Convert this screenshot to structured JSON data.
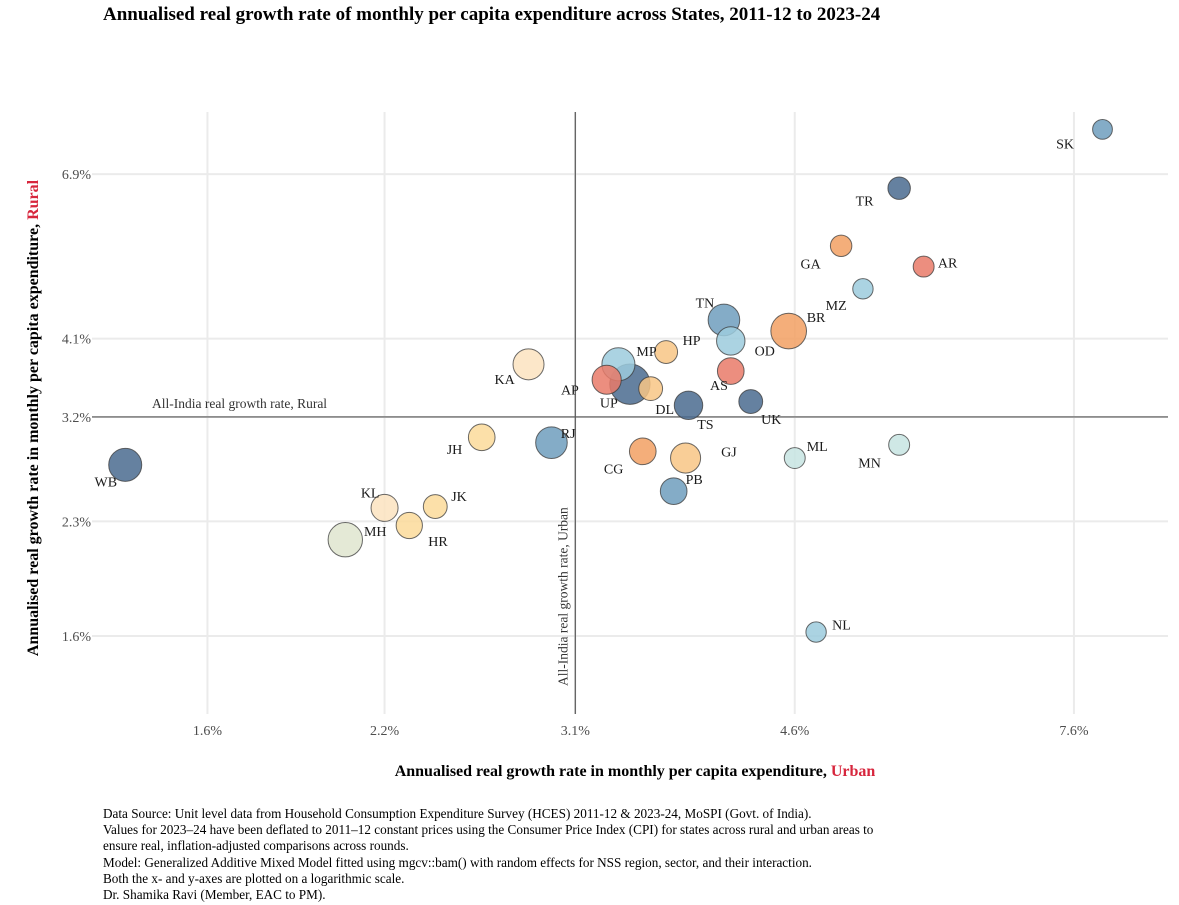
{
  "title": "Annualised real growth rate of monthly per capita expenditure across States, 2011-12 to 2023-24",
  "xlabel": {
    "main": "Annualised real growth rate in monthly per capita expenditure, ",
    "accent": "Urban"
  },
  "ylabel": {
    "main": "Annualised real growth rate in monthly per capita expenditure, ",
    "accent": "Rural"
  },
  "notes": [
    "Data Source: Unit level data from Household Consumption Expenditure Survey (HCES) 2011-12 & 2023-24, MoSPI (Govt. of India).",
    "Values for 2023–24 have been deflated to 2011–12 constant prices using the Consumer Price Index (CPI) for states across rural and urban areas to",
    "ensure real, inflation-adjusted comparisons across rounds.",
    "Model: Generalized Additive Mixed Model fitted using mgcv::bam() with random effects for NSS region, sector, and their interaction.",
    "Both the x- and y-axes are plotted on a logarithmic scale.",
    "Dr. Shamika Ravi (Member, EAC to PM)."
  ],
  "chart_data": {
    "type": "scatter",
    "x_scale": "log",
    "y_scale": "log",
    "xlim": [
      1.3,
      9.0
    ],
    "ylim": [
      1.25,
      8.4
    ],
    "x_ticks": [
      1.6,
      2.2,
      3.1,
      4.6,
      7.6
    ],
    "x_tick_labels": [
      "1.6%",
      "2.2%",
      "3.1%",
      "4.6%",
      "7.6%"
    ],
    "y_ticks": [
      1.6,
      2.3,
      3.2,
      4.1,
      6.9
    ],
    "y_tick_labels": [
      "1.6%",
      "2.3%",
      "3.2%",
      "4.1%",
      "6.9%"
    ],
    "grid": true,
    "reference_lines": {
      "rural": {
        "value": 3.2,
        "label": "All-India real growth rate, Rural"
      },
      "urban": {
        "value": 3.1,
        "label": "All-India real growth rate, Urban"
      }
    },
    "colors": {
      "blue_dark": "#4a6b8f",
      "blue_mid": "#6f9dbd",
      "blue_light": "#9ccbdd",
      "teal_pale": "#c7e4e2",
      "orange": "#f2a063",
      "orange_light": "#f8c585",
      "yellow_pale": "#fbdb9a",
      "cream": "#fbe3c0",
      "red": "#e97a69",
      "sage": "#dfe5cf"
    },
    "points": [
      {
        "state": "SK",
        "x": 8.0,
        "y": 7.95,
        "size": 1.0,
        "color": "blue_mid"
      },
      {
        "state": "TR",
        "x": 5.55,
        "y": 6.6,
        "size": 1.5,
        "color": "blue_dark"
      },
      {
        "state": "GA",
        "x": 5.0,
        "y": 5.5,
        "size": 1.3,
        "color": "orange"
      },
      {
        "state": "AR",
        "x": 5.8,
        "y": 5.15,
        "size": 1.2,
        "color": "red"
      },
      {
        "state": "MZ",
        "x": 5.2,
        "y": 4.8,
        "size": 1.1,
        "color": "blue_light"
      },
      {
        "state": "TN",
        "x": 4.05,
        "y": 4.35,
        "size": 4.0,
        "color": "blue_mid"
      },
      {
        "state": "BR",
        "x": 4.55,
        "y": 4.2,
        "size": 5.5,
        "color": "orange"
      },
      {
        "state": "OD",
        "x": 4.1,
        "y": 4.07,
        "size": 3.0,
        "color": "blue_light"
      },
      {
        "state": "HP",
        "x": 3.65,
        "y": 3.93,
        "size": 1.6,
        "color": "orange_light"
      },
      {
        "state": "MP",
        "x": 3.35,
        "y": 3.78,
        "size": 4.5,
        "color": "blue_light"
      },
      {
        "state": "OD2",
        "x": 4.1,
        "y": 3.7,
        "size": 2.5,
        "color": "red"
      },
      {
        "state": "KA",
        "x": 2.85,
        "y": 3.78,
        "size": 3.8,
        "color": "cream"
      },
      {
        "state": "AP",
        "x": 3.28,
        "y": 3.6,
        "size": 3.2,
        "color": "red"
      },
      {
        "state": "UP",
        "x": 3.42,
        "y": 3.55,
        "size": 7.5,
        "color": "blue_dark"
      },
      {
        "state": "DL",
        "x": 3.55,
        "y": 3.5,
        "size": 1.8,
        "color": "orange_light"
      },
      {
        "state": "AS",
        "x": 3.8,
        "y": 3.32,
        "size": 3.0,
        "color": "blue_dark"
      },
      {
        "state": "UK",
        "x": 4.25,
        "y": 3.36,
        "size": 1.8,
        "color": "blue_dark"
      },
      {
        "state": "JH",
        "x": 2.62,
        "y": 3.0,
        "size": 2.5,
        "color": "yellow_pale"
      },
      {
        "state": "RJ",
        "x": 2.97,
        "y": 2.95,
        "size": 4.0,
        "color": "blue_mid"
      },
      {
        "state": "CG",
        "x": 3.5,
        "y": 2.87,
        "size": 2.5,
        "color": "orange"
      },
      {
        "state": "GJ",
        "x": 3.78,
        "y": 2.81,
        "size": 3.5,
        "color": "orange_light"
      },
      {
        "state": "ML",
        "x": 4.6,
        "y": 2.81,
        "size": 1.2,
        "color": "teal_pale"
      },
      {
        "state": "MN",
        "x": 5.55,
        "y": 2.93,
        "size": 1.2,
        "color": "teal_pale"
      },
      {
        "state": "WB",
        "x": 1.38,
        "y": 2.75,
        "size": 4.5,
        "color": "blue_dark"
      },
      {
        "state": "PB",
        "x": 3.7,
        "y": 2.53,
        "size": 2.5,
        "color": "blue_mid"
      },
      {
        "state": "KL",
        "x": 2.2,
        "y": 2.4,
        "size": 2.6,
        "color": "cream"
      },
      {
        "state": "JK",
        "x": 2.41,
        "y": 2.41,
        "size": 1.8,
        "color": "yellow_pale"
      },
      {
        "state": "HR",
        "x": 2.3,
        "y": 2.27,
        "size": 2.4,
        "color": "yellow_pale"
      },
      {
        "state": "MH",
        "x": 2.05,
        "y": 2.17,
        "size": 5.0,
        "color": "sage"
      },
      {
        "state": "NL",
        "x": 4.78,
        "y": 1.62,
        "size": 1.1,
        "color": "blue_light"
      }
    ],
    "labels": [
      {
        "text": "SK",
        "x": 7.6,
        "y": 7.6,
        "anchor": "end"
      },
      {
        "text": "TR",
        "x": 5.3,
        "y": 6.35,
        "anchor": "end"
      },
      {
        "text": "GA",
        "x": 4.82,
        "y": 5.2,
        "anchor": "end"
      },
      {
        "text": "AR",
        "x": 5.95,
        "y": 5.22,
        "anchor": "start"
      },
      {
        "text": "MZ",
        "x": 5.05,
        "y": 4.56,
        "anchor": "end"
      },
      {
        "text": "TN",
        "x": 3.98,
        "y": 4.6,
        "anchor": "end"
      },
      {
        "text": "BR",
        "x": 4.7,
        "y": 4.39,
        "anchor": "start"
      },
      {
        "text": "OD",
        "x": 4.28,
        "y": 3.95,
        "anchor": "start"
      },
      {
        "text": "HP",
        "x": 3.76,
        "y": 4.08,
        "anchor": "start"
      },
      {
        "text": "MP",
        "x": 3.46,
        "y": 3.94,
        "anchor": "start"
      },
      {
        "text": "KA",
        "x": 2.78,
        "y": 3.61,
        "anchor": "end"
      },
      {
        "text": "AP",
        "x": 3.12,
        "y": 3.49,
        "anchor": "end"
      },
      {
        "text": "UP",
        "x": 3.24,
        "y": 3.35,
        "anchor": "start"
      },
      {
        "text": "DL",
        "x": 3.58,
        "y": 3.28,
        "anchor": "start"
      },
      {
        "text": "AS",
        "x": 3.95,
        "y": 3.54,
        "anchor": "start"
      },
      {
        "text": "TS",
        "x": 3.86,
        "y": 3.13,
        "anchor": "start"
      },
      {
        "text": "UK",
        "x": 4.33,
        "y": 3.18,
        "anchor": "start"
      },
      {
        "text": "JH",
        "x": 2.53,
        "y": 2.89,
        "anchor": "end"
      },
      {
        "text": "RJ",
        "x": 3.02,
        "y": 3.04,
        "anchor": "start"
      },
      {
        "text": "CG",
        "x": 3.38,
        "y": 2.72,
        "anchor": "end"
      },
      {
        "text": "GJ",
        "x": 4.03,
        "y": 2.87,
        "anchor": "start"
      },
      {
        "text": "ML",
        "x": 4.7,
        "y": 2.92,
        "anchor": "start"
      },
      {
        "text": "MN",
        "x": 5.37,
        "y": 2.77,
        "anchor": "end"
      },
      {
        "text": "WB",
        "x": 1.36,
        "y": 2.61,
        "anchor": "end"
      },
      {
        "text": "PB",
        "x": 3.78,
        "y": 2.63,
        "anchor": "start"
      },
      {
        "text": "KL",
        "x": 2.18,
        "y": 2.52,
        "anchor": "end"
      },
      {
        "text": "JK",
        "x": 2.48,
        "y": 2.49,
        "anchor": "start"
      },
      {
        "text": "HR",
        "x": 2.38,
        "y": 2.16,
        "anchor": "start"
      },
      {
        "text": "MH",
        "x": 2.12,
        "y": 2.23,
        "anchor": "start"
      },
      {
        "text": "NL",
        "x": 4.92,
        "y": 1.66,
        "anchor": "start"
      }
    ]
  }
}
